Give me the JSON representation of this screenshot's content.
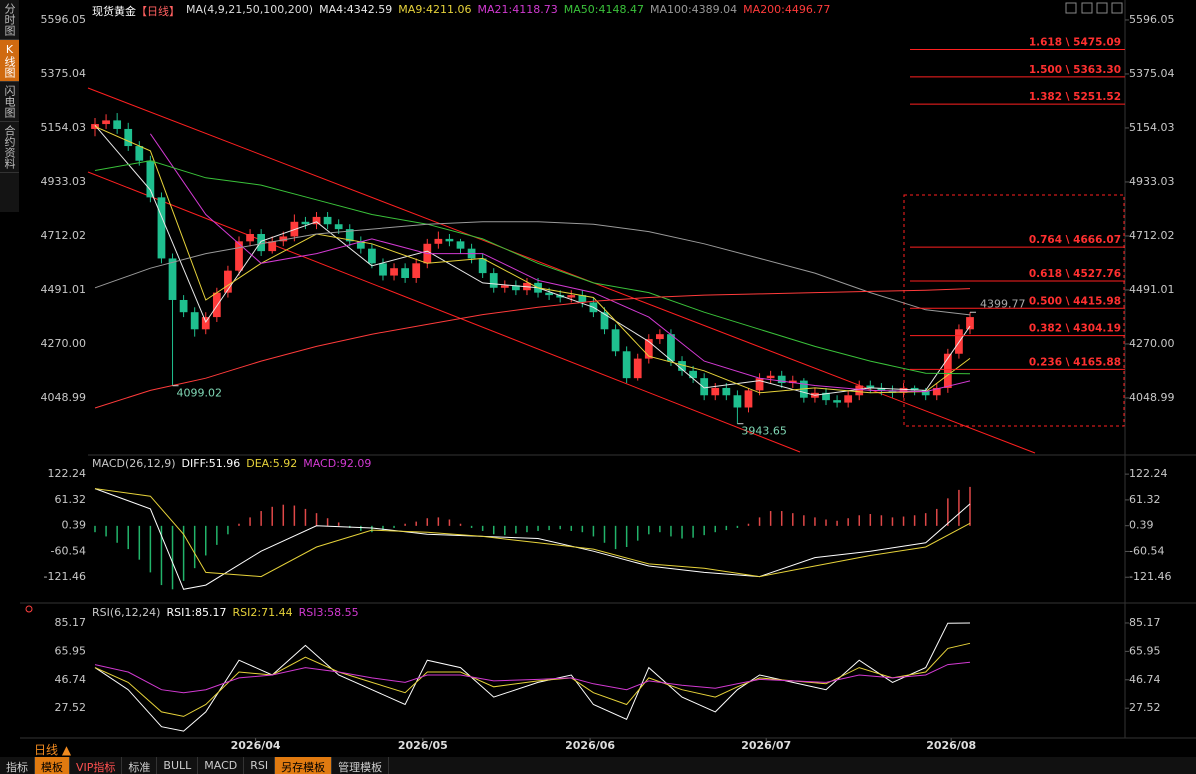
{
  "sidebar_tabs": [
    "分时图",
    "K线图",
    "闪电图",
    "合约资料"
  ],
  "period_selector": "日线 ▲",
  "toolbar": [
    "指标",
    "模板",
    "VIP指标",
    "标准",
    "BULL",
    "MACD",
    "RSI",
    "另存模板",
    "管理模板"
  ],
  "chart_data": [
    {
      "type": "candlestick",
      "title": "现货黄金",
      "period": "【日线】",
      "indicator": "MA(4,9,21,50,100,200)",
      "xlim": [
        0,
        79
      ],
      "ylim": [
        3836,
        5645
      ],
      "yticks": [
        5596.05,
        5375.04,
        5154.03,
        4933.03,
        4712.02,
        4491.01,
        {
          "value": 4270,
          "label": "4270.00"
        },
        4048.99
      ],
      "up_color": "#ff3b3b",
      "down_color": "#1fbf8f",
      "open": [
        5150,
        5170,
        5185,
        5150,
        5080,
        5020,
        4870,
        4620,
        4450,
        4400,
        4330,
        4380,
        4480,
        4570,
        4690,
        4720,
        4650,
        4690,
        4710,
        4770,
        4760,
        4790,
        4760,
        4740,
        4690,
        4660,
        4600,
        4550,
        4580,
        4540,
        4600,
        4680,
        4700,
        4690,
        4660,
        4620,
        4560,
        4500,
        4510,
        4490,
        4520,
        4480,
        4470,
        4460,
        4470,
        4440,
        4400,
        4330,
        4240,
        4130,
        4210,
        4290,
        4310,
        4200,
        4160,
        4130,
        4060,
        4090,
        4060,
        4010,
        4080,
        4130,
        4140,
        4110,
        4120,
        4050,
        4070,
        4040,
        4030,
        4060,
        4100,
        4090,
        4080,
        4070,
        4090,
        4080,
        4060,
        4090,
        4230,
        4330
      ],
      "high": [
        5195,
        5210,
        5215,
        5175,
        5100,
        5040,
        4890,
        4640,
        4470,
        4420,
        4400,
        4500,
        4590,
        4710,
        4740,
        4740,
        4710,
        4730,
        4800,
        4790,
        4810,
        4810,
        4780,
        4760,
        4710,
        4680,
        4620,
        4600,
        4600,
        4620,
        4700,
        4730,
        4720,
        4700,
        4680,
        4640,
        4580,
        4530,
        4530,
        4540,
        4540,
        4500,
        4490,
        4490,
        4490,
        4460,
        4420,
        4350,
        4260,
        4230,
        4310,
        4330,
        4330,
        4220,
        4180,
        4150,
        4110,
        4110,
        4080,
        4090,
        4150,
        4160,
        4160,
        4140,
        4130,
        4090,
        4090,
        4060,
        4080,
        4120,
        4120,
        4110,
        4100,
        4110,
        4100,
        4090,
        4110,
        4250,
        4350,
        4399.77
      ],
      "low": [
        5120,
        5150,
        5130,
        5060,
        5000,
        4850,
        4600,
        4099.02,
        4380,
        4300,
        4310,
        4360,
        4460,
        4550,
        4670,
        4630,
        4640,
        4670,
        4690,
        4740,
        4740,
        4740,
        4720,
        4670,
        4640,
        4580,
        4530,
        4530,
        4520,
        4520,
        4580,
        4660,
        4670,
        4640,
        4600,
        4540,
        4480,
        4480,
        4470,
        4470,
        4460,
        4450,
        4440,
        4440,
        4420,
        4380,
        4310,
        4220,
        4110,
        4120,
        4190,
        4270,
        4180,
        4140,
        4110,
        4040,
        4040,
        4040,
        3943.65,
        3990,
        4060,
        4110,
        4090,
        4090,
        4030,
        4030,
        4020,
        4010,
        4010,
        4040,
        4070,
        4060,
        4050,
        4050,
        4060,
        4040,
        4040,
        4070,
        4210,
        4310
      ],
      "close": [
        5170,
        5185,
        5150,
        5080,
        5020,
        4870,
        4620,
        4450,
        4400,
        4330,
        4380,
        4480,
        4570,
        4690,
        4720,
        4650,
        4690,
        4710,
        4770,
        4760,
        4790,
        4760,
        4740,
        4690,
        4660,
        4600,
        4550,
        4580,
        4540,
        4600,
        4680,
        4700,
        4690,
        4660,
        4620,
        4560,
        4500,
        4510,
        4490,
        4520,
        4480,
        4470,
        4460,
        4470,
        4440,
        4400,
        4330,
        4240,
        4130,
        4210,
        4290,
        4310,
        4200,
        4160,
        4130,
        4060,
        4090,
        4060,
        4010,
        4080,
        4130,
        4140,
        4110,
        4120,
        4050,
        4070,
        4040,
        4030,
        4060,
        4100,
        4090,
        4080,
        4070,
        4090,
        4080,
        4060,
        4090,
        4230,
        4330,
        4380
      ],
      "series": [
        {
          "name": "MA4:4342.59",
          "color": "#e8e8e8",
          "x": [
            0,
            5,
            10,
            15,
            20,
            25,
            30,
            35,
            40,
            45,
            50,
            55,
            60,
            65,
            70,
            75,
            79
          ],
          "values": [
            5165,
            4900,
            4360,
            4690,
            4770,
            4590,
            4650,
            4520,
            4500,
            4420,
            4280,
            4090,
            4120,
            4060,
            4090,
            4080,
            4342.59
          ]
        },
        {
          "name": "MA9:4211.06",
          "color": "#e6d23a",
          "x": [
            0,
            5,
            10,
            15,
            20,
            25,
            30,
            35,
            40,
            45,
            50,
            55,
            60,
            65,
            70,
            75,
            79
          ],
          "values": [
            5160,
            5060,
            4450,
            4600,
            4720,
            4680,
            4600,
            4620,
            4500,
            4460,
            4220,
            4160,
            4070,
            4090,
            4070,
            4075,
            4211.06
          ]
        },
        {
          "name": "MA21:4118.73",
          "color": "#d23ad2",
          "x": [
            0,
            5,
            10,
            15,
            20,
            25,
            30,
            35,
            40,
            45,
            50,
            55,
            60,
            65,
            70,
            75,
            79
          ],
          "values": [
            null,
            5130,
            4800,
            4600,
            4640,
            4700,
            4640,
            4640,
            4530,
            4480,
            4380,
            4200,
            4130,
            4100,
            4080,
            4075,
            4118.73
          ]
        },
        {
          "name": "MA50:4148.47",
          "color": "#3ac23a",
          "x": [
            0,
            5,
            10,
            15,
            20,
            25,
            30,
            35,
            40,
            45,
            50,
            55,
            60,
            65,
            70,
            75,
            79
          ],
          "values": [
            4980,
            5020,
            4950,
            4920,
            4860,
            4800,
            4760,
            4700,
            4600,
            4520,
            4480,
            4400,
            4330,
            4260,
            4200,
            4150,
            4148.47
          ]
        },
        {
          "name": "MA100:4389.04",
          "color": "#9a9a9a",
          "x": [
            0,
            5,
            10,
            15,
            20,
            25,
            30,
            35,
            40,
            45,
            50,
            55,
            60,
            65,
            70,
            75,
            79
          ],
          "values": [
            4500,
            4580,
            4640,
            4680,
            4720,
            4740,
            4760,
            4770,
            4770,
            4760,
            4730,
            4680,
            4620,
            4560,
            4480,
            4410,
            4389.04
          ]
        },
        {
          "name": "MA200:4496.77",
          "color": "#ff3b3b",
          "x": [
            0,
            5,
            10,
            15,
            20,
            25,
            30,
            35,
            40,
            45,
            50,
            55,
            60,
            65,
            70,
            75,
            79
          ],
          "values": [
            4008,
            4080,
            4130,
            4200,
            4260,
            4310,
            4350,
            4390,
            4420,
            4445,
            4460,
            4470,
            4475,
            4480,
            4485,
            4490,
            4496.77
          ]
        }
      ],
      "fib_levels": [
        {
          "value": 5475.09,
          "label": "1.618 \\ 5475.09"
        },
        {
          "value": 5363.3,
          "label": "1.500 \\ 5363.30"
        },
        {
          "value": 5251.52,
          "label": "1.382 \\ 5251.52"
        },
        {
          "value": 4666.07,
          "label": "0.764 \\ 4666.07"
        },
        {
          "value": 4527.76,
          "label": "0.618 \\ 4527.76"
        },
        {
          "value": 4415.98,
          "label": "0.500 \\ 4415.98"
        },
        {
          "value": 4304.19,
          "label": "0.382 \\ 4304.19"
        },
        {
          "value": 4165.88,
          "label": "0.236 \\ 4165.88"
        }
      ],
      "annotations": [
        {
          "x": 7,
          "value": 4099.02,
          "label": "4099.02"
        },
        {
          "x": 58,
          "value": 3943.65,
          "label": "3943.65"
        },
        {
          "x": 79,
          "value": 4399.77,
          "label": "4399.77"
        }
      ]
    },
    {
      "type": "macd",
      "title": "MACD(26,12,9)",
      "macd_label": "MACD:92.09",
      "xlim": [
        0,
        79
      ],
      "ylim": [
        -180,
        132
      ],
      "yticks": [
        122.24,
        61.32,
        0.39,
        -60.54,
        -121.46
      ],
      "up_color": "#e04848",
      "down_color": "#22b46a",
      "histogram": [
        -15,
        -25,
        -40,
        -55,
        -80,
        -110,
        -140,
        -150,
        -130,
        -100,
        -70,
        -45,
        -20,
        5,
        20,
        35,
        45,
        50,
        48,
        40,
        30,
        18,
        8,
        -5,
        -12,
        -15,
        -10,
        -5,
        5,
        10,
        18,
        20,
        15,
        5,
        -5,
        -12,
        -20,
        -22,
        -18,
        -15,
        -12,
        -10,
        -8,
        -12,
        -15,
        -25,
        -40,
        -55,
        -50,
        -35,
        -20,
        -15,
        -25,
        -30,
        -28,
        -22,
        -15,
        -10,
        -5,
        5,
        20,
        35,
        35,
        30,
        25,
        20,
        15,
        12,
        18,
        25,
        28,
        25,
        20,
        22,
        25,
        30,
        40,
        65,
        85,
        92.09
      ],
      "series": [
        {
          "name": "DIFF:51.96",
          "color": "#ffffff",
          "x": [
            0,
            5,
            8,
            10,
            15,
            20,
            25,
            30,
            35,
            40,
            45,
            50,
            55,
            60,
            65,
            70,
            75,
            79
          ],
          "values": [
            88,
            40,
            -150,
            -140,
            -60,
            0,
            -5,
            -20,
            -25,
            -30,
            -60,
            -95,
            -110,
            -120,
            -75,
            -60,
            -40,
            51.96
          ]
        },
        {
          "name": "DEA:5.92",
          "color": "#e6d23a",
          "x": [
            0,
            5,
            8,
            10,
            15,
            20,
            25,
            30,
            35,
            40,
            45,
            50,
            55,
            60,
            65,
            70,
            75,
            79
          ],
          "values": [
            88,
            70,
            -20,
            -110,
            -120,
            -50,
            -10,
            -15,
            -25,
            -40,
            -55,
            -90,
            -100,
            -120,
            -95,
            -70,
            -50,
            5.92
          ]
        }
      ]
    },
    {
      "type": "line",
      "title": "RSI(6,12,24)",
      "xlim": [
        0,
        79
      ],
      "ylim": [
        6,
        92.6
      ],
      "yticks": [
        85.17,
        65.95,
        46.74,
        27.52
      ],
      "xticks": [
        {
          "value": 14.5,
          "label": "2026/04"
        },
        {
          "value": 29.6,
          "label": "2026/05"
        },
        {
          "value": 44.7,
          "label": "2026/06"
        },
        {
          "value": 60.6,
          "label": "2026/07"
        },
        {
          "value": 77.3,
          "label": "2026/08"
        }
      ],
      "series": [
        {
          "name": "RSI1:85.17",
          "color": "#ffffff",
          "x": [
            0,
            3,
            6,
            8,
            10,
            13,
            16,
            19,
            22,
            25,
            28,
            30,
            33,
            36,
            40,
            43,
            45,
            48,
            50,
            53,
            56,
            58,
            60,
            63,
            66,
            69,
            72,
            75,
            77,
            79
          ],
          "values": [
            55,
            40,
            15,
            12,
            25,
            60,
            50,
            70,
            50,
            40,
            30,
            60,
            55,
            35,
            45,
            50,
            30,
            20,
            55,
            35,
            25,
            40,
            50,
            45,
            40,
            60,
            45,
            55,
            85,
            85.17
          ]
        },
        {
          "name": "RSI2:71.44",
          "color": "#e6d23a",
          "x": [
            0,
            3,
            6,
            8,
            10,
            13,
            16,
            19,
            22,
            25,
            28,
            30,
            33,
            36,
            40,
            43,
            45,
            48,
            50,
            53,
            56,
            58,
            60,
            63,
            66,
            69,
            72,
            75,
            77,
            79
          ],
          "values": [
            55,
            45,
            25,
            22,
            30,
            52,
            50,
            62,
            52,
            45,
            38,
            52,
            52,
            42,
            46,
            48,
            38,
            30,
            48,
            40,
            35,
            42,
            48,
            46,
            44,
            55,
            48,
            52,
            68,
            71.44
          ]
        },
        {
          "name": "RSI3:58.55",
          "color": "#d23ad2",
          "x": [
            0,
            3,
            6,
            8,
            10,
            13,
            16,
            19,
            22,
            25,
            28,
            30,
            33,
            36,
            40,
            43,
            45,
            48,
            50,
            53,
            56,
            58,
            60,
            63,
            66,
            69,
            72,
            75,
            77,
            79
          ],
          "values": [
            57,
            52,
            40,
            38,
            40,
            48,
            50,
            55,
            52,
            48,
            45,
            50,
            50,
            46,
            47,
            48,
            44,
            40,
            46,
            43,
            41,
            44,
            47,
            46,
            45,
            50,
            48,
            50,
            57,
            58.55
          ]
        }
      ]
    }
  ]
}
